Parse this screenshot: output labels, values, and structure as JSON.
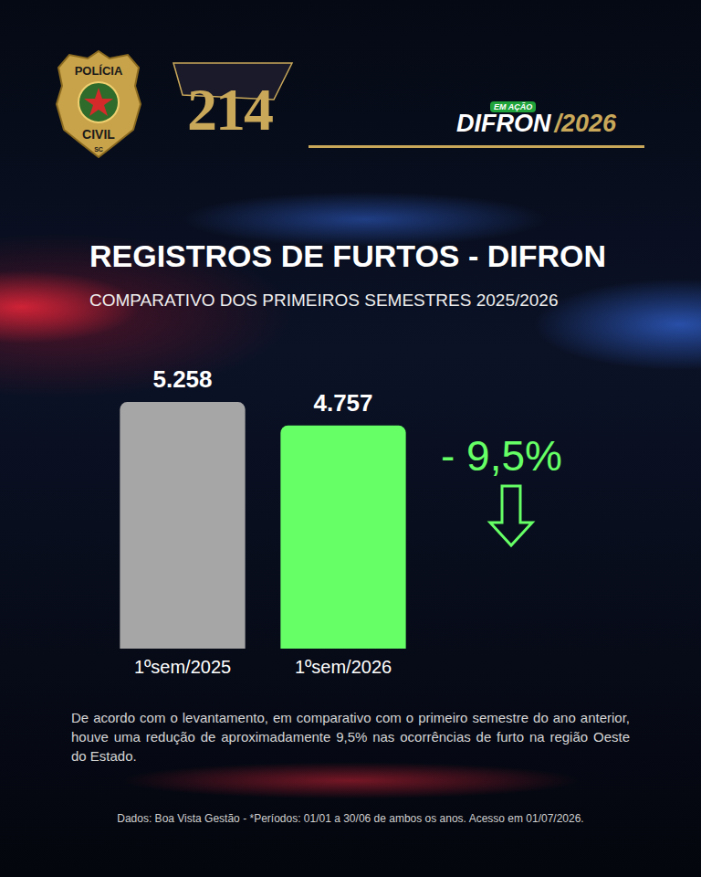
{
  "header": {
    "badge": [
      "POLÍCIA",
      "CIVIL",
      "SC"
    ],
    "emblem": "214",
    "tag": "EM AÇÃO",
    "brand": "DIFRON",
    "year": "/2026"
  },
  "chart_data": {
    "type": "bar",
    "title": "REGISTROS DE FURTOS - DIFRON",
    "subtitle": "COMPARATIVO DOS PRIMEIROS SEMESTRES 2025/2026",
    "categories": [
      "1ºsem/2025",
      "1ºsem/2026"
    ],
    "values": [
      5258,
      4757
    ],
    "value_labels": [
      "5.258",
      "4.757"
    ],
    "colors": [
      "#a6a6a6",
      "#66ff66"
    ],
    "ylim": [
      0,
      6000
    ],
    "grid": false,
    "data_labels": true,
    "tick_labels": "x",
    "annotations": [
      "- 9,5%"
    ]
  },
  "description": "De acordo com o levantamento, em comparativo com o primeiro semestre do ano anterior, houve uma redução de aproximadamente 9,5% nas ocorrências de furto na região Oeste do Estado.",
  "source": "Dados: Boa Vista Gestão - *Períodos: 01/01 a 30/06 de ambos os anos. Acesso em 01/07/2026."
}
